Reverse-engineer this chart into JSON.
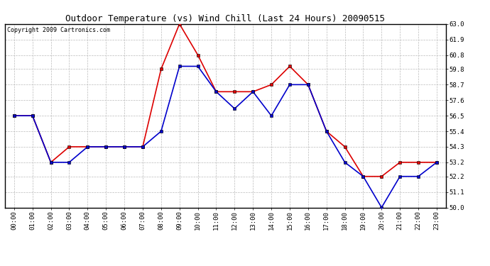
{
  "title": "Outdoor Temperature (vs) Wind Chill (Last 24 Hours) 20090515",
  "copyright": "Copyright 2009 Cartronics.com",
  "hours": [
    "00:00",
    "01:00",
    "02:00",
    "03:00",
    "04:00",
    "05:00",
    "06:00",
    "07:00",
    "08:00",
    "09:00",
    "10:00",
    "11:00",
    "12:00",
    "13:00",
    "14:00",
    "15:00",
    "16:00",
    "17:00",
    "18:00",
    "19:00",
    "20:00",
    "21:00",
    "22:00",
    "23:00"
  ],
  "temp": [
    56.5,
    56.5,
    53.2,
    54.3,
    54.3,
    54.3,
    54.3,
    54.3,
    59.8,
    63.0,
    60.8,
    58.2,
    58.2,
    58.2,
    58.7,
    60.0,
    58.7,
    55.4,
    54.3,
    52.2,
    52.2,
    53.2,
    53.2,
    53.2
  ],
  "wind_chill": [
    56.5,
    56.5,
    53.2,
    53.2,
    54.3,
    54.3,
    54.3,
    54.3,
    55.4,
    60.0,
    60.0,
    58.2,
    57.0,
    58.2,
    56.5,
    58.7,
    58.7,
    55.4,
    53.2,
    52.2,
    50.0,
    52.2,
    52.2,
    53.2
  ],
  "temp_color": "#dd0000",
  "wind_chill_color": "#0000cc",
  "bg_color": "#ffffff",
  "plot_bg_color": "#ffffff",
  "grid_color": "#bbbbbb",
  "ylim_min": 50.0,
  "ylim_max": 63.0,
  "yticks": [
    50.0,
    51.1,
    52.2,
    53.2,
    54.3,
    55.4,
    56.5,
    57.6,
    58.7,
    59.8,
    60.8,
    61.9,
    63.0
  ],
  "marker": "s",
  "marker_size": 3,
  "linewidth": 1.2,
  "title_fontsize": 9,
  "tick_fontsize": 6.5
}
